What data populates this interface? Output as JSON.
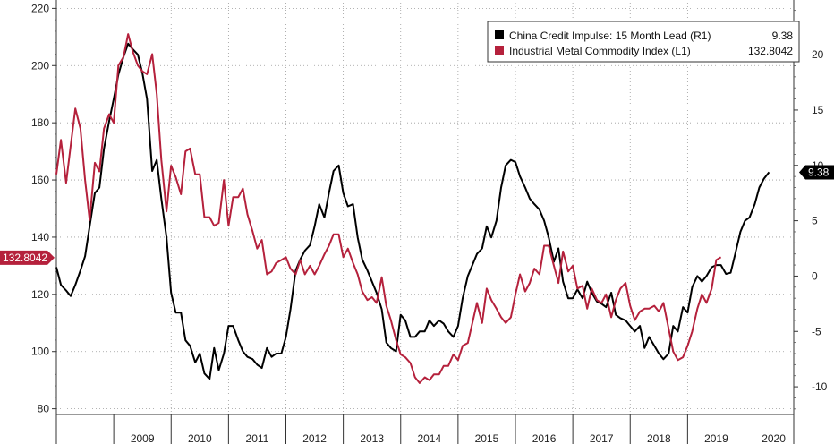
{
  "chart_data": {
    "type": "line",
    "title": "",
    "xlabel": "",
    "ylabel": "",
    "x_ticks": [
      "2009",
      "2010",
      "2011",
      "2012",
      "2013",
      "2014",
      "2015",
      "2016",
      "2017",
      "2018",
      "2019",
      "2020"
    ],
    "x_range": [
      2008.0,
      2020.85
    ],
    "left_axis": {
      "ylim": [
        78,
        222
      ],
      "ticks": [
        80,
        100,
        120,
        140,
        160,
        180,
        200,
        220
      ]
    },
    "right_axis": {
      "ylim": [
        -12.5,
        24.7
      ],
      "ticks": [
        -10,
        -5,
        0,
        5,
        10,
        15,
        20
      ]
    },
    "grid": "dotted",
    "legend_position": "top-right",
    "colors": {
      "credit": "#000000",
      "metal": "#b5213c"
    },
    "series": [
      {
        "name": "China Credit Impulse: 15 Month Lead (R1)",
        "last_value": "9.38",
        "axis": "right",
        "color": "#000000",
        "points": [
          [
            2008.0,
            0.8
          ],
          [
            2008.08,
            -0.8
          ],
          [
            2008.17,
            -1.3
          ],
          [
            2008.25,
            -1.8
          ],
          [
            2008.33,
            -0.8
          ],
          [
            2008.42,
            0.5
          ],
          [
            2008.5,
            1.8
          ],
          [
            2008.58,
            4.5
          ],
          [
            2008.67,
            7.5
          ],
          [
            2008.75,
            8.0
          ],
          [
            2008.83,
            11.5
          ],
          [
            2008.92,
            14.0
          ],
          [
            2009.0,
            16.0
          ],
          [
            2009.08,
            18.2
          ],
          [
            2009.17,
            19.8
          ],
          [
            2009.25,
            21.0
          ],
          [
            2009.33,
            20.5
          ],
          [
            2009.42,
            20.0
          ],
          [
            2009.5,
            18.3
          ],
          [
            2009.58,
            16.0
          ],
          [
            2009.67,
            9.5
          ],
          [
            2009.75,
            10.5
          ],
          [
            2009.83,
            7.0
          ],
          [
            2009.92,
            3.5
          ],
          [
            2010.0,
            -1.5
          ],
          [
            2010.08,
            -3.3
          ],
          [
            2010.17,
            -3.3
          ],
          [
            2010.25,
            -5.8
          ],
          [
            2010.33,
            -6.3
          ],
          [
            2010.42,
            -7.8
          ],
          [
            2010.5,
            -7.0
          ],
          [
            2010.58,
            -8.8
          ],
          [
            2010.67,
            -9.3
          ],
          [
            2010.75,
            -6.5
          ],
          [
            2010.83,
            -8.5
          ],
          [
            2010.92,
            -7.0
          ],
          [
            2011.0,
            -4.5
          ],
          [
            2011.08,
            -4.5
          ],
          [
            2011.17,
            -5.8
          ],
          [
            2011.25,
            -6.8
          ],
          [
            2011.33,
            -7.3
          ],
          [
            2011.42,
            -7.5
          ],
          [
            2011.5,
            -8.0
          ],
          [
            2011.58,
            -8.3
          ],
          [
            2011.67,
            -6.5
          ],
          [
            2011.75,
            -7.3
          ],
          [
            2011.83,
            -7.0
          ],
          [
            2011.92,
            -7.0
          ],
          [
            2012.0,
            -5.5
          ],
          [
            2012.08,
            -3.0
          ],
          [
            2012.17,
            0.5
          ],
          [
            2012.25,
            1.5
          ],
          [
            2012.33,
            2.3
          ],
          [
            2012.42,
            2.8
          ],
          [
            2012.5,
            4.5
          ],
          [
            2012.58,
            6.5
          ],
          [
            2012.67,
            5.3
          ],
          [
            2012.75,
            7.5
          ],
          [
            2012.83,
            9.5
          ],
          [
            2012.92,
            10.0
          ],
          [
            2013.0,
            7.5
          ],
          [
            2013.08,
            6.3
          ],
          [
            2013.17,
            6.5
          ],
          [
            2013.25,
            3.5
          ],
          [
            2013.33,
            1.5
          ],
          [
            2013.42,
            0.5
          ],
          [
            2013.5,
            -0.5
          ],
          [
            2013.58,
            -1.5
          ],
          [
            2013.67,
            -3.0
          ],
          [
            2013.75,
            -6.0
          ],
          [
            2013.83,
            -6.5
          ],
          [
            2013.92,
            -6.8
          ],
          [
            2014.0,
            -3.5
          ],
          [
            2014.08,
            -4.0
          ],
          [
            2014.17,
            -5.5
          ],
          [
            2014.25,
            -5.5
          ],
          [
            2014.33,
            -5.0
          ],
          [
            2014.42,
            -5.0
          ],
          [
            2014.5,
            -4.0
          ],
          [
            2014.58,
            -4.5
          ],
          [
            2014.67,
            -4.0
          ],
          [
            2014.75,
            -4.3
          ],
          [
            2014.83,
            -5.0
          ],
          [
            2014.92,
            -5.5
          ],
          [
            2015.0,
            -4.5
          ],
          [
            2015.08,
            -2.0
          ],
          [
            2015.17,
            0.0
          ],
          [
            2015.25,
            1.0
          ],
          [
            2015.33,
            2.0
          ],
          [
            2015.42,
            2.5
          ],
          [
            2015.5,
            4.5
          ],
          [
            2015.58,
            3.5
          ],
          [
            2015.67,
            5.0
          ],
          [
            2015.75,
            8.0
          ],
          [
            2015.83,
            10.0
          ],
          [
            2015.92,
            10.5
          ],
          [
            2016.0,
            10.3
          ],
          [
            2016.08,
            9.0
          ],
          [
            2016.17,
            8.0
          ],
          [
            2016.25,
            7.0
          ],
          [
            2016.33,
            6.5
          ],
          [
            2016.42,
            6.0
          ],
          [
            2016.5,
            5.0
          ],
          [
            2016.58,
            3.5
          ],
          [
            2016.67,
            1.3
          ],
          [
            2016.75,
            2.5
          ],
          [
            2016.83,
            -0.5
          ],
          [
            2016.92,
            -2.0
          ],
          [
            2017.0,
            -2.0
          ],
          [
            2017.08,
            -1.2
          ],
          [
            2017.17,
            -2.0
          ],
          [
            2017.25,
            -0.5
          ],
          [
            2017.33,
            -1.5
          ],
          [
            2017.42,
            -2.3
          ],
          [
            2017.5,
            -2.5
          ],
          [
            2017.58,
            -2.8
          ],
          [
            2017.67,
            -1.5
          ],
          [
            2017.75,
            -3.5
          ],
          [
            2017.83,
            -3.8
          ],
          [
            2017.92,
            -4.0
          ],
          [
            2018.0,
            -4.5
          ],
          [
            2018.08,
            -5.0
          ],
          [
            2018.17,
            -4.5
          ],
          [
            2018.25,
            -6.5
          ],
          [
            2018.33,
            -5.5
          ],
          [
            2018.42,
            -6.3
          ],
          [
            2018.5,
            -7.0
          ],
          [
            2018.58,
            -7.5
          ],
          [
            2018.67,
            -7.0
          ],
          [
            2018.75,
            -4.5
          ],
          [
            2018.83,
            -5.0
          ],
          [
            2018.92,
            -2.8
          ],
          [
            2019.0,
            -3.3
          ],
          [
            2019.08,
            -1.0
          ],
          [
            2019.17,
            0.0
          ],
          [
            2019.25,
            -0.5
          ],
          [
            2019.33,
            0.0
          ],
          [
            2019.42,
            0.8
          ],
          [
            2019.5,
            1.0
          ],
          [
            2019.58,
            1.0
          ],
          [
            2019.67,
            0.2
          ],
          [
            2019.75,
            0.3
          ],
          [
            2019.83,
            2.0
          ],
          [
            2019.92,
            4.0
          ],
          [
            2020.0,
            5.0
          ],
          [
            2020.08,
            5.3
          ],
          [
            2020.17,
            6.5
          ],
          [
            2020.25,
            8.0
          ],
          [
            2020.33,
            8.8
          ],
          [
            2020.42,
            9.38
          ]
        ]
      },
      {
        "name": "Industrial Metal Commodity Index (L1)",
        "last_value": "132.8042",
        "axis": "left",
        "color": "#b5213c",
        "points": [
          [
            2008.0,
            162
          ],
          [
            2008.08,
            174
          ],
          [
            2008.17,
            159
          ],
          [
            2008.25,
            172
          ],
          [
            2008.33,
            185
          ],
          [
            2008.42,
            178
          ],
          [
            2008.5,
            160
          ],
          [
            2008.58,
            146
          ],
          [
            2008.67,
            166
          ],
          [
            2008.75,
            163
          ],
          [
            2008.83,
            178
          ],
          [
            2008.92,
            183
          ],
          [
            2009.0,
            180
          ],
          [
            2009.08,
            200
          ],
          [
            2009.17,
            203
          ],
          [
            2009.25,
            211
          ],
          [
            2009.33,
            205
          ],
          [
            2009.42,
            200
          ],
          [
            2009.5,
            198
          ],
          [
            2009.58,
            197
          ],
          [
            2009.67,
            204
          ],
          [
            2009.75,
            190
          ],
          [
            2009.83,
            167
          ],
          [
            2009.92,
            149
          ],
          [
            2010.0,
            165
          ],
          [
            2010.08,
            161
          ],
          [
            2010.17,
            155
          ],
          [
            2010.25,
            170
          ],
          [
            2010.33,
            171
          ],
          [
            2010.42,
            162
          ],
          [
            2010.5,
            162
          ],
          [
            2010.58,
            147
          ],
          [
            2010.67,
            147
          ],
          [
            2010.75,
            144
          ],
          [
            2010.83,
            145
          ],
          [
            2010.92,
            160
          ],
          [
            2011.0,
            144
          ],
          [
            2011.08,
            154
          ],
          [
            2011.17,
            154
          ],
          [
            2011.25,
            157
          ],
          [
            2011.33,
            148
          ],
          [
            2011.42,
            142
          ],
          [
            2011.5,
            136
          ],
          [
            2011.58,
            139
          ],
          [
            2011.67,
            127
          ],
          [
            2011.75,
            128
          ],
          [
            2011.83,
            131
          ],
          [
            2011.92,
            132
          ],
          [
            2012.0,
            133
          ],
          [
            2012.08,
            129
          ],
          [
            2012.17,
            127
          ],
          [
            2012.25,
            132
          ],
          [
            2012.33,
            127
          ],
          [
            2012.42,
            130
          ],
          [
            2012.5,
            127
          ],
          [
            2012.58,
            130
          ],
          [
            2012.67,
            134
          ],
          [
            2012.75,
            137
          ],
          [
            2012.83,
            141
          ],
          [
            2012.92,
            141
          ],
          [
            2013.0,
            133
          ],
          [
            2013.08,
            136
          ],
          [
            2013.17,
            131
          ],
          [
            2013.25,
            127
          ],
          [
            2013.33,
            121
          ],
          [
            2013.42,
            118
          ],
          [
            2013.5,
            119
          ],
          [
            2013.58,
            117
          ],
          [
            2013.67,
            126
          ],
          [
            2013.75,
            116
          ],
          [
            2013.83,
            111
          ],
          [
            2013.92,
            104
          ],
          [
            2014.0,
            99
          ],
          [
            2014.08,
            98
          ],
          [
            2014.17,
            96
          ],
          [
            2014.25,
            91
          ],
          [
            2014.33,
            89
          ],
          [
            2014.42,
            91
          ],
          [
            2014.5,
            90
          ],
          [
            2014.58,
            92
          ],
          [
            2014.67,
            92
          ],
          [
            2014.75,
            95
          ],
          [
            2014.83,
            95
          ],
          [
            2014.92,
            99
          ],
          [
            2015.0,
            97
          ],
          [
            2015.08,
            102
          ],
          [
            2015.17,
            103
          ],
          [
            2015.25,
            110
          ],
          [
            2015.33,
            117
          ],
          [
            2015.42,
            110
          ],
          [
            2015.5,
            122
          ],
          [
            2015.58,
            118
          ],
          [
            2015.67,
            115
          ],
          [
            2015.75,
            112
          ],
          [
            2015.83,
            110
          ],
          [
            2015.92,
            112
          ],
          [
            2016.0,
            120
          ],
          [
            2016.08,
            127
          ],
          [
            2016.17,
            121
          ],
          [
            2016.25,
            124
          ],
          [
            2016.33,
            129
          ],
          [
            2016.42,
            127
          ],
          [
            2016.5,
            137
          ],
          [
            2016.58,
            137
          ],
          [
            2016.67,
            130
          ],
          [
            2016.75,
            124
          ],
          [
            2016.83,
            135
          ],
          [
            2016.92,
            128
          ],
          [
            2017.0,
            130
          ],
          [
            2017.08,
            122
          ],
          [
            2017.17,
            123
          ],
          [
            2017.25,
            115
          ],
          [
            2017.33,
            122
          ],
          [
            2017.42,
            118
          ],
          [
            2017.5,
            117
          ],
          [
            2017.58,
            120
          ],
          [
            2017.67,
            112
          ],
          [
            2017.75,
            118
          ],
          [
            2017.83,
            122
          ],
          [
            2017.92,
            124
          ],
          [
            2018.0,
            116
          ],
          [
            2018.08,
            111
          ],
          [
            2018.17,
            114
          ],
          [
            2018.25,
            115
          ],
          [
            2018.33,
            115
          ],
          [
            2018.42,
            116
          ],
          [
            2018.5,
            114
          ],
          [
            2018.58,
            117
          ],
          [
            2018.67,
            108
          ],
          [
            2018.75,
            100
          ],
          [
            2018.83,
            97
          ],
          [
            2018.92,
            98
          ],
          [
            2019.0,
            102
          ],
          [
            2019.08,
            107
          ],
          [
            2019.17,
            115
          ],
          [
            2019.25,
            120
          ],
          [
            2019.33,
            117
          ],
          [
            2019.42,
            122
          ],
          [
            2019.5,
            132
          ],
          [
            2019.58,
            133
          ]
        ]
      }
    ],
    "last_value_tags": {
      "left": "132.8042",
      "right": "9.38"
    }
  }
}
